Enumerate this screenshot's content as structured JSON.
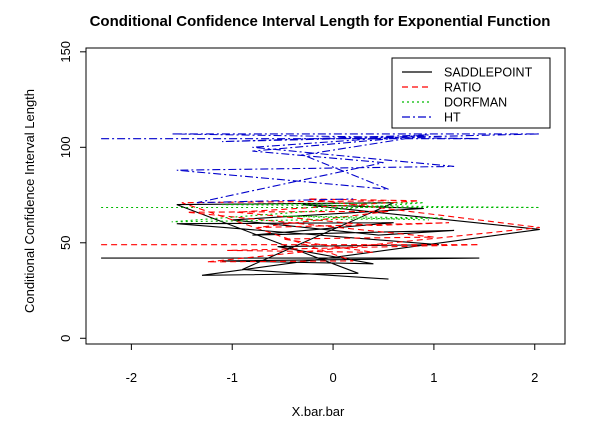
{
  "chart_data": {
    "type": "line",
    "title": "Conditional Confidence Interval Length for Exponential Function",
    "xlabel": "X.bar.bar",
    "ylabel": "Conditional Confidence Interval Length",
    "xlim": [
      -2.45,
      2.3
    ],
    "ylim": [
      -3,
      152
    ],
    "x_ticks": [
      -2,
      -1,
      0,
      1,
      2
    ],
    "y_ticks": [
      0,
      50,
      100,
      150
    ],
    "grid": false,
    "legend_position": "top-right",
    "series": [
      {
        "name": "SADDLEPOINT",
        "color": "#000000",
        "dash": "solid",
        "x": [
          -2.3,
          1.45,
          -1.1,
          0.4,
          -0.55,
          1.05,
          -1.55,
          0.6,
          -0.8,
          1.2,
          0.45,
          -1.0,
          0.9,
          -0.3,
          2.05,
          -1.3,
          0.25,
          -1.55,
          0.6,
          -0.9,
          0.55
        ],
        "y": [
          42,
          42,
          40.5,
          39,
          48,
          49,
          60,
          60.5,
          54,
          56.5,
          54,
          62,
          68,
          70,
          57,
          33,
          34,
          70,
          71,
          36,
          31
        ]
      },
      {
        "name": "RATIO",
        "color": "#ff0000",
        "dash": "6,4",
        "x": [
          -2.3,
          1.45,
          -1.05,
          0.4,
          -0.5,
          1.0,
          -1.45,
          0.55,
          -0.75,
          1.15,
          0.4,
          -0.95,
          0.85,
          -0.25,
          2.05,
          -1.25,
          0.2,
          -1.5,
          0.55
        ],
        "y": [
          49,
          49,
          46,
          45,
          52,
          53,
          66,
          66.5,
          58,
          60.5,
          59,
          66,
          72,
          73,
          58,
          40,
          40.5,
          71,
          72
        ]
      },
      {
        "name": "DORFMAN",
        "color": "#00bb00",
        "dash": "2,3",
        "x": [
          -2.3,
          2.05,
          -1.1,
          0.9,
          -1.6,
          1.1,
          -0.5,
          0.95
        ],
        "y": [
          68.5,
          68.5,
          70,
          71,
          61,
          63,
          64,
          62
        ]
      },
      {
        "name": "HT",
        "color": "#0000cc",
        "dash": "8,3,2,3",
        "x": [
          -2.3,
          1.45,
          -1.6,
          2.05,
          -1.1,
          0.95,
          -0.8,
          1.2,
          -1.55,
          0.55,
          -0.3,
          0.9,
          -0.8,
          0.5,
          -1.35,
          0.2
        ],
        "y": [
          104.5,
          104.5,
          107,
          107,
          103,
          106.5,
          100,
          90,
          88,
          78,
          96,
          106,
          98,
          92,
          71,
          73
        ]
      }
    ]
  }
}
